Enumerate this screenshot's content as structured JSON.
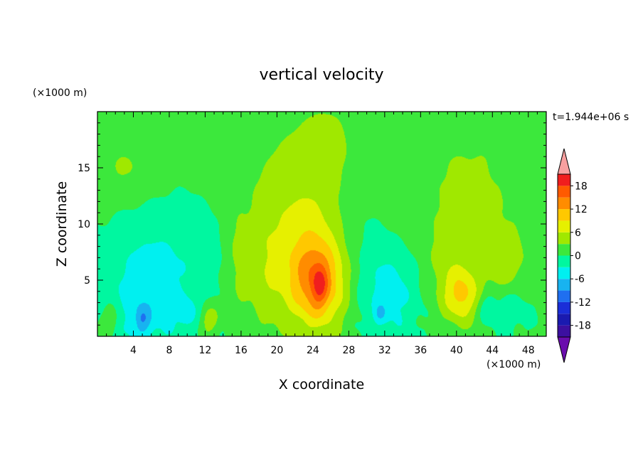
{
  "chart_data": {
    "type": "heatmap",
    "title": "vertical velocity",
    "time_label": "t=1.944e+06 s",
    "xlabel": "X coordinate",
    "ylabel": "Z coordinate",
    "x_unit": "(×1000 m)",
    "y_unit": "(×1000 m)",
    "xlim": [
      0,
      50
    ],
    "ylim": [
      0,
      20
    ],
    "x_ticks": [
      4,
      8,
      12,
      16,
      20,
      24,
      28,
      32,
      36,
      40,
      44,
      48
    ],
    "y_ticks": [
      5,
      10,
      15
    ],
    "colorbar": {
      "levels": [
        -21,
        -18,
        -15,
        -12,
        -9,
        -6,
        -3,
        0,
        3,
        6,
        9,
        12,
        15,
        18,
        21
      ],
      "labels": [
        18,
        12,
        6,
        0,
        -6,
        -12,
        -18
      ],
      "colors": [
        "#6a0dad",
        "#3c10a0",
        "#1a1ab0",
        "#1a2ed8",
        "#1f6ff0",
        "#18b3f0",
        "#00f0f0",
        "#00f7a0",
        "#3ce83c",
        "#a0e800",
        "#e6f000",
        "#ffc800",
        "#ff8c00",
        "#ff5a00",
        "#f01e1e",
        "#f8a0a0"
      ],
      "extend": "both"
    },
    "background_value": 0.5,
    "features": [
      {
        "x": 24.5,
        "z": 4.8,
        "sx": 2.2,
        "sz": 2.8,
        "amp": 10
      },
      {
        "x": 24.8,
        "z": 4.5,
        "sx": 0.6,
        "sz": 1.2,
        "amp": 6
      },
      {
        "x": 23.5,
        "z": 7.0,
        "sx": 3.5,
        "sz": 4.5,
        "amp": 5
      },
      {
        "x": 21.0,
        "z": 13.0,
        "sx": 4.0,
        "sz": 5.0,
        "amp": 2.5
      },
      {
        "x": 26.0,
        "z": 17.0,
        "sx": 3.0,
        "sz": 4.0,
        "amp": 2.5
      },
      {
        "x": 40.5,
        "z": 3.6,
        "sx": 1.3,
        "sz": 1.6,
        "amp": 7
      },
      {
        "x": 39.5,
        "z": 5.5,
        "sx": 2.5,
        "sz": 3.0,
        "amp": 3
      },
      {
        "x": 45.5,
        "z": 6.5,
        "sx": 1.6,
        "sz": 2.2,
        "amp": 3.5
      },
      {
        "x": 41.5,
        "z": 13.5,
        "sx": 6.0,
        "sz": 5.5,
        "amp": 2.8
      },
      {
        "x": 3.0,
        "z": 15.0,
        "sx": 2.5,
        "sz": 2.0,
        "amp": 2.8
      },
      {
        "x": 10.5,
        "z": 15.5,
        "sx": 0.8,
        "sz": 0.8,
        "amp": 2.5
      },
      {
        "x": 15.5,
        "z": 6.5,
        "sx": 0.9,
        "sz": 3.5,
        "amp": 2.8
      },
      {
        "x": 18.5,
        "z": 5.5,
        "sx": 1.4,
        "sz": 4.0,
        "amp": 2.8
      },
      {
        "x": 12.5,
        "z": 1.5,
        "sx": 0.8,
        "sz": 0.9,
        "amp": 5
      },
      {
        "x": 1.5,
        "z": 1.5,
        "sx": 0.8,
        "sz": 1.0,
        "amp": 4
      },
      {
        "x": 5.0,
        "z": 2.5,
        "sx": 3.0,
        "sz": 4.0,
        "amp": -4.5
      },
      {
        "x": 5.0,
        "z": 1.5,
        "sx": 0.6,
        "sz": 0.8,
        "amp": -5
      },
      {
        "x": 8.5,
        "z": 7.0,
        "sx": 4.5,
        "sz": 3.5,
        "amp": -2.5
      },
      {
        "x": 10.0,
        "z": 2.0,
        "sx": 0.8,
        "sz": 1.0,
        "amp": -4
      },
      {
        "x": 32.5,
        "z": 4.0,
        "sx": 2.6,
        "sz": 3.0,
        "amp": -5.2
      },
      {
        "x": 31.5,
        "z": 2.0,
        "sx": 0.5,
        "sz": 0.6,
        "amp": -3.5
      },
      {
        "x": 28.5,
        "z": 10.0,
        "sx": 2.5,
        "sz": 4.0,
        "amp": -2.0
      },
      {
        "x": 46.0,
        "z": 2.5,
        "sx": 1.5,
        "sz": 1.5,
        "amp": -3
      },
      {
        "x": 43.5,
        "z": 2.5,
        "sx": 0.7,
        "sz": 0.9,
        "amp": -4
      }
    ]
  }
}
